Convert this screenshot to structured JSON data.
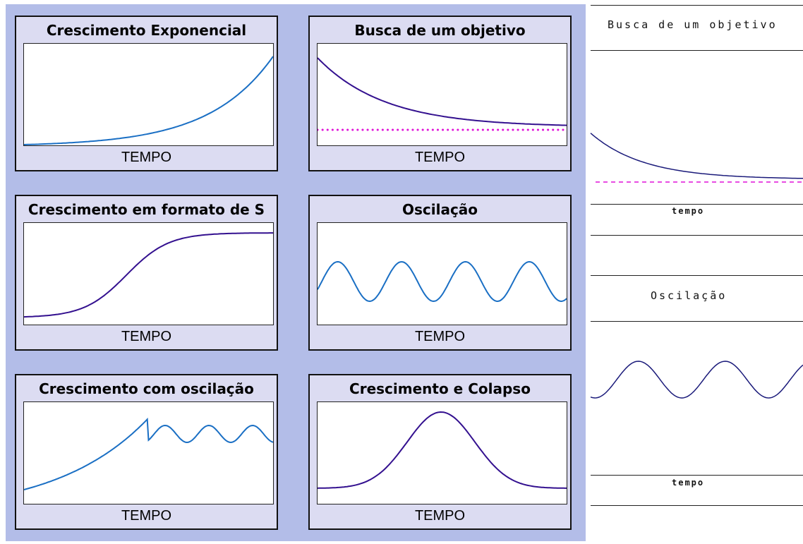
{
  "panels": [
    {
      "title": "Crescimento Exponencial",
      "xlabel": "TEMPO",
      "pattern": "exponential"
    },
    {
      "title": "Busca de um objetivo",
      "xlabel": "TEMPO",
      "pattern": "goal-seeking"
    },
    {
      "title": "Crescimento em formato de S",
      "xlabel": "TEMPO",
      "pattern": "s-shaped"
    },
    {
      "title": "Oscilação",
      "xlabel": "TEMPO",
      "pattern": "oscillation"
    },
    {
      "title": "Crescimento com oscilação",
      "xlabel": "TEMPO",
      "pattern": "growth-with-oscillation"
    },
    {
      "title": "Crescimento e Colapso",
      "xlabel": "TEMPO",
      "pattern": "growth-and-collapse"
    }
  ],
  "side": {
    "goal_title": "Busca de um objetivo",
    "goal_xlabel": "tempo",
    "osc_title": "Oscilação",
    "osc_xlabel": "tempo"
  },
  "colors": {
    "panel_bg": "#b3bde8",
    "card_bg": "#dcdcf2",
    "curve_blue": "#1a6fc4",
    "curve_purple": "#33108f",
    "goal_dots": "#e010d8",
    "side_curve": "#1a1a7a"
  }
}
